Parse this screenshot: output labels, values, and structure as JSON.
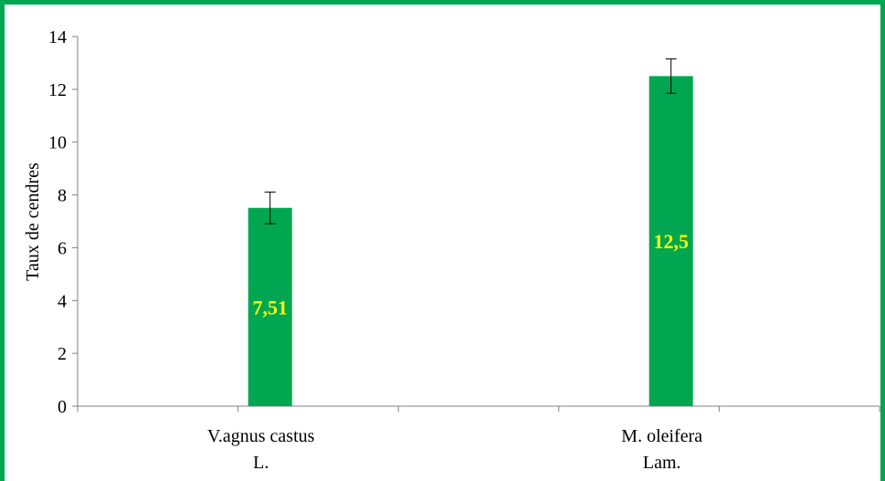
{
  "chart_data": {
    "type": "bar",
    "categories": [
      [
        "V.agnus castus",
        "L."
      ],
      [
        "M. oleifera",
        "Lam."
      ]
    ],
    "values": [
      7.51,
      12.5
    ],
    "error": [
      0.6,
      0.65
    ],
    "data_labels": [
      "7,51",
      "12,5"
    ],
    "ylabel": "Taux de cendres",
    "xlabel": "",
    "title": "",
    "ylim": [
      0,
      14
    ],
    "yticks": [
      0,
      2,
      4,
      6,
      8,
      10,
      12,
      14
    ],
    "ytick_labels": [
      "0",
      "2",
      "4",
      "6",
      "8",
      "10",
      "12",
      "14"
    ],
    "grid": false,
    "legend": "none",
    "colors": {
      "bar": "#00a650",
      "data_label": "#ffff00",
      "frame": "#00a650",
      "axis": "#808080",
      "error_bar": "#000000"
    }
  }
}
